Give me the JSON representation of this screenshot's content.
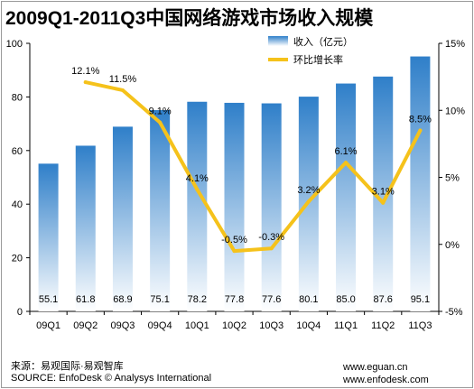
{
  "title": "2009Q1-2011Q3中国网络游戏市场收入规模",
  "footer": {
    "source_cn": "来源：易观国际·易观智库",
    "source_en": "SOURCE: EnfoDesk © Analysys International",
    "url1": "www.eguan.cn",
    "url2": "www.enfodesk.com"
  },
  "colors": {
    "bar_top": "#2f7fc9",
    "bar_bottom": "#ffffff",
    "line": "#f5c21b"
  },
  "chart_data": {
    "type": "bar",
    "title": "2009Q1-2011Q3中国网络游戏市场收入规模",
    "categories": [
      "09Q1",
      "09Q2",
      "09Q3",
      "09Q4",
      "10Q1",
      "10Q2",
      "10Q3",
      "10Q4",
      "11Q1",
      "11Q2",
      "11Q3"
    ],
    "series": [
      {
        "name": "收入（亿元）",
        "type": "bar",
        "axis": "left",
        "values": [
          55.1,
          61.8,
          68.9,
          75.1,
          78.2,
          77.8,
          77.6,
          80.1,
          85.0,
          87.6,
          95.1
        ],
        "labels": [
          "55.1",
          "61.8",
          "68.9",
          "75.1",
          "78.2",
          "77.8",
          "77.6",
          "80.1",
          "85.0",
          "87.6",
          "95.1"
        ]
      },
      {
        "name": "环比增长率",
        "type": "line",
        "axis": "right",
        "values": [
          null,
          12.1,
          11.5,
          9.1,
          4.1,
          -0.5,
          -0.3,
          3.2,
          6.1,
          3.1,
          8.5
        ],
        "labels": [
          "",
          "12.1%",
          "11.5%",
          "9.1%",
          "4.1%",
          "-0.5%",
          "-0.3%",
          "3.2%",
          "6.1%",
          "3.1%",
          "8.5%"
        ]
      }
    ],
    "y_left": {
      "range": [
        0,
        100
      ],
      "ticks": [
        0,
        20,
        40,
        60,
        80,
        100
      ],
      "tick_labels": [
        "0",
        "20",
        "40",
        "60",
        "80",
        "100"
      ]
    },
    "y_right": {
      "range": [
        -5,
        15
      ],
      "ticks": [
        -5,
        0,
        5,
        10,
        15
      ],
      "tick_labels": [
        "-5%",
        "0%",
        "5%",
        "10%",
        "15%"
      ]
    },
    "legend_position": "top-right",
    "grid": false
  }
}
